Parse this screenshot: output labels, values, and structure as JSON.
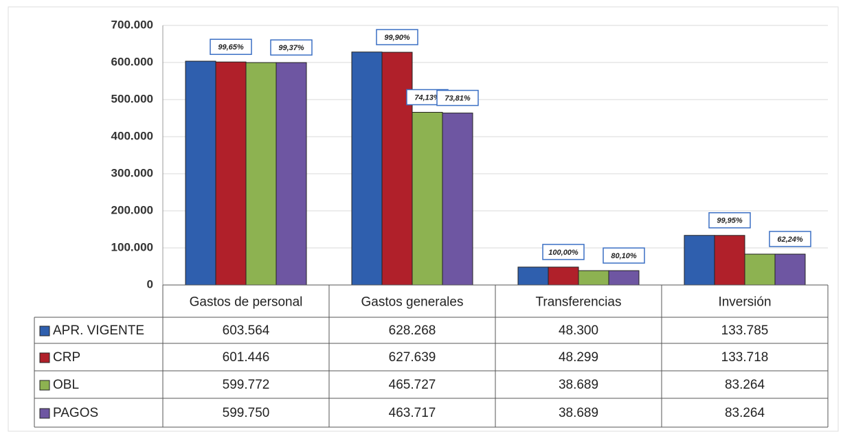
{
  "chart_data": {
    "type": "bar",
    "categories": [
      "Gastos de personal",
      "Gastos generales",
      "Transferencias",
      "Inversión"
    ],
    "series": [
      {
        "name": "APR. VIGENTE",
        "color": "#2f5fae",
        "values": [
          603564,
          628268,
          48300,
          133785
        ],
        "value_labels": [
          "603.564",
          "628.268",
          "48.300",
          "133.785"
        ],
        "annotations": [
          null,
          null,
          null,
          null
        ]
      },
      {
        "name": "CRP",
        "color": "#b0202a",
        "values": [
          601446,
          627639,
          48299,
          133718
        ],
        "value_labels": [
          "601.446",
          "627.639",
          "48.299",
          "133.718"
        ],
        "annotations": [
          "99,65%",
          "99,90%",
          "100,00%",
          "99,95%"
        ]
      },
      {
        "name": "OBL",
        "color": "#8db251",
        "values": [
          599772,
          465727,
          38689,
          83264
        ],
        "value_labels": [
          "599.772",
          "465.727",
          "38.689",
          "83.264"
        ],
        "annotations": [
          null,
          "74,13%",
          null,
          null
        ]
      },
      {
        "name": "PAGOS",
        "color": "#6e56a2",
        "values": [
          599750,
          463717,
          38689,
          83264
        ],
        "value_labels": [
          "599.750",
          "463.717",
          "38.689",
          "83.264"
        ],
        "annotations": [
          "99,37%",
          "73,81%",
          "80,10%",
          "62,24%"
        ]
      }
    ],
    "ylim": [
      0,
      700000
    ],
    "yticks": [
      0,
      {
        "value": 100000,
        "label": "100.000"
      },
      {
        "value": 200000,
        "label": "200.000"
      },
      {
        "value": 300000,
        "label": "300.000"
      },
      {
        "value": 400000,
        "label": "400.000"
      },
      {
        "value": 500000,
        "label": "500.000"
      },
      {
        "value": 600000,
        "label": "600.000"
      },
      {
        "value": 700000,
        "label": "700.000"
      }
    ],
    "grid": true
  }
}
